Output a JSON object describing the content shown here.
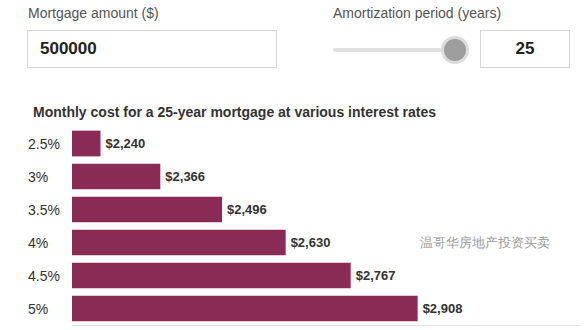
{
  "form": {
    "mortgage_label": "Mortgage amount ($)",
    "mortgage_amount": "500000",
    "amortization_label": "Amortization period (years)",
    "amortization_years": "25"
  },
  "watermark": "温哥华房地产投资买卖",
  "chart_data": {
    "type": "bar",
    "orientation": "horizontal",
    "title": "Monthly cost for a 25-year mortgage at various interest rates",
    "categories": [
      "2.5%",
      "3%",
      "3.5%",
      "4%",
      "4.5%",
      "5%"
    ],
    "values": [
      2240,
      2366,
      2496,
      2630,
      2767,
      2908
    ],
    "value_labels": [
      "$2,240",
      "$2,366",
      "$2,496",
      "$2,630",
      "$2,767",
      "$2,908"
    ],
    "color": "#8a2b56",
    "xlim": [
      2180,
      3250
    ],
    "tick_labels": "y",
    "grid": false,
    "data_labels": true
  }
}
